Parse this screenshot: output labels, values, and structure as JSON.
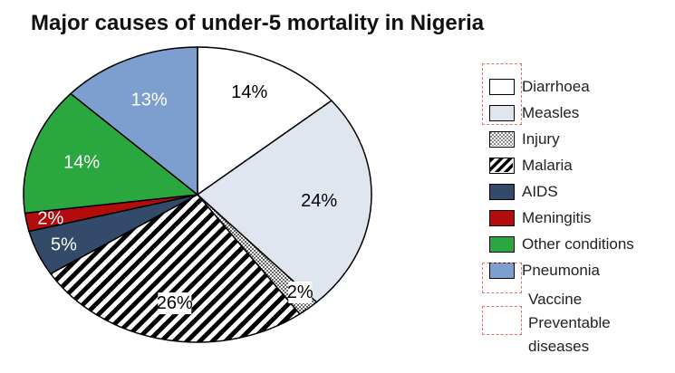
{
  "chart_data": {
    "type": "pie",
    "title": "Major causes of under-5 mortality in Nigeria",
    "slices": [
      {
        "name": "Diarrhoea",
        "value": 14,
        "label": "14%",
        "fill": "#ffffff",
        "label_color": "#000000"
      },
      {
        "name": "Measles",
        "value": 24,
        "label": "24%",
        "fill": "#dfe6f0",
        "label_color": "#000000"
      },
      {
        "name": "Injury",
        "value": 2,
        "label": "2%",
        "fill": "pattern-dots",
        "label_color": "#000000"
      },
      {
        "name": "Malaria",
        "value": 26,
        "label": "26%",
        "fill": "pattern-diagonal",
        "label_color": "#000000"
      },
      {
        "name": "AIDS",
        "value": 5,
        "label": "5%",
        "fill": "#334a6b",
        "label_color": "#ffffff"
      },
      {
        "name": "Meningitis",
        "value": 2,
        "label": "2%",
        "fill": "#b40c0c",
        "label_color": "#ffffff"
      },
      {
        "name": "Other conditions",
        "value": 14,
        "label": "14%",
        "fill": "#2aa83f",
        "label_color": "#ffffff"
      },
      {
        "name": "Pneumonia",
        "value": 13,
        "label": "13%",
        "fill": "#7d9fcf",
        "label_color": "#ffffff"
      }
    ],
    "legend_position": "right",
    "note": "Vaccine Preventable diseases"
  },
  "legend": {
    "items": [
      "Diarrhoea",
      "Measles",
      "Injury",
      "Malaria",
      "AIDS",
      "Meningitis",
      "Other conditions",
      "Pneumonia"
    ],
    "note_line1": "Vaccine",
    "note_line2": "Preventable",
    "note_line3": "diseases"
  }
}
